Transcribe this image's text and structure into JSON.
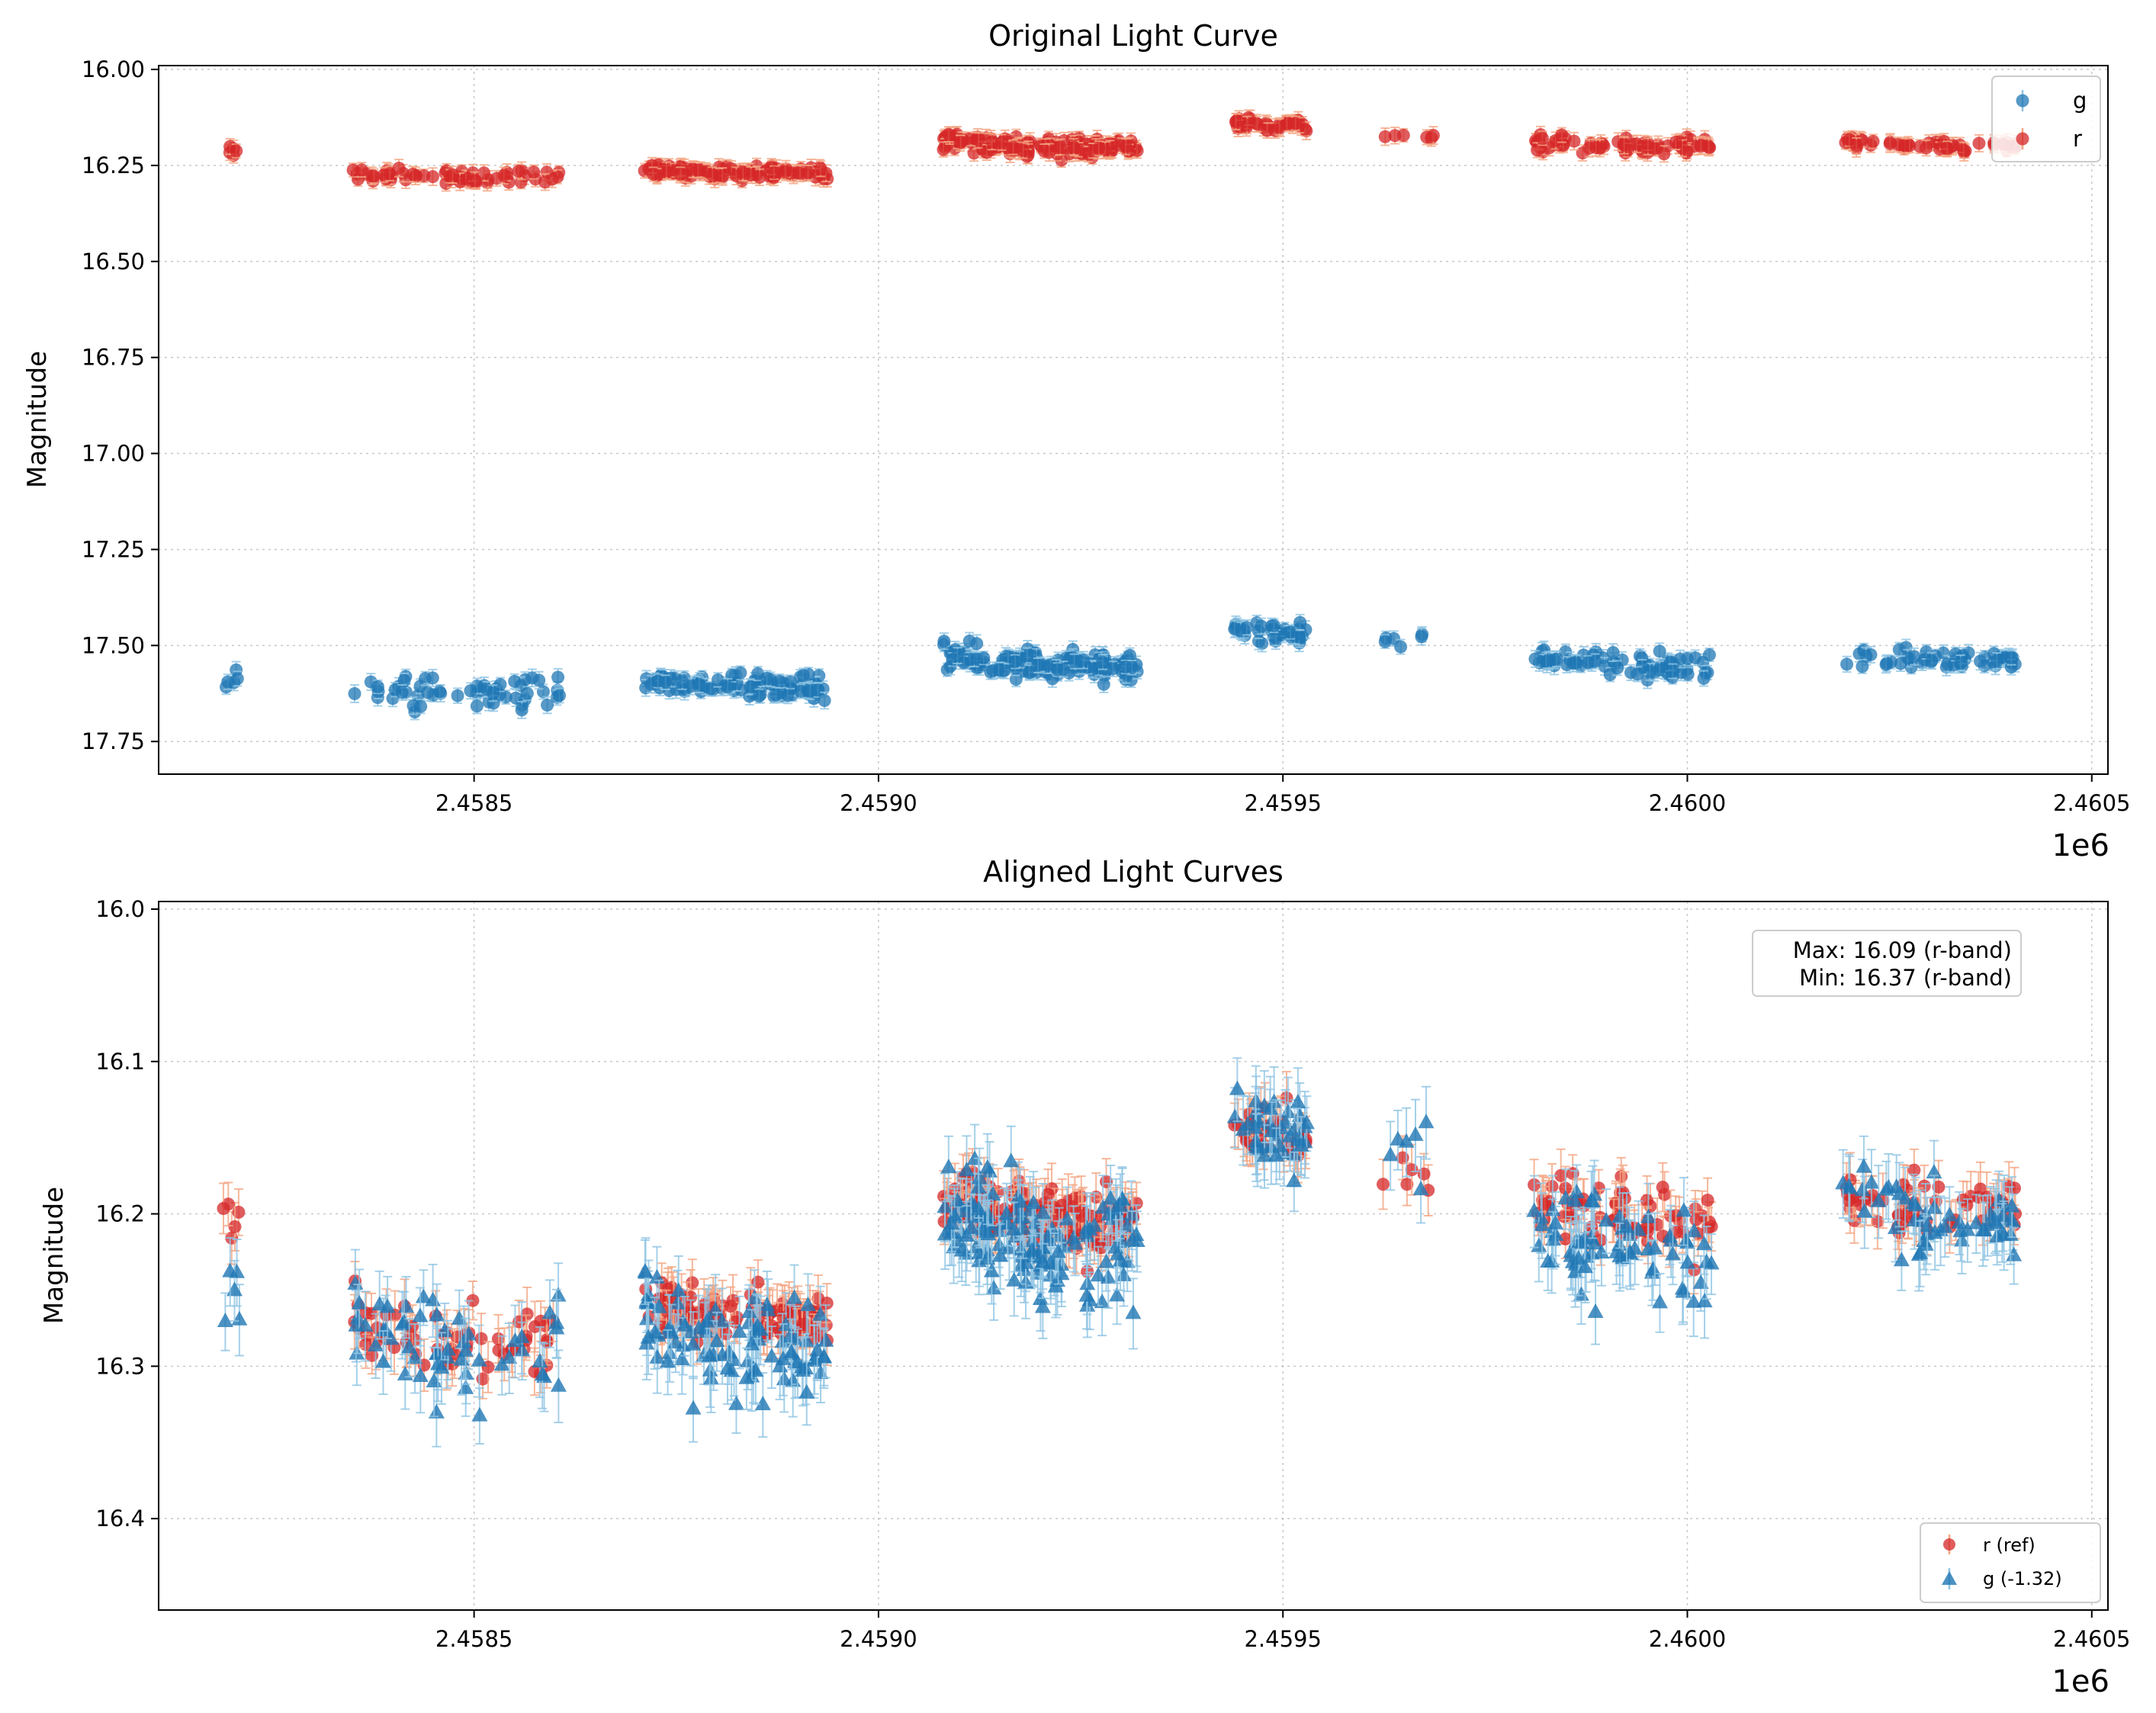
{
  "chart_data": [
    {
      "type": "scatter",
      "title": "Original Light Curve",
      "xlabel": "",
      "ylabel": "Magnitude",
      "x_offset_label": "1e6",
      "xlim": [
        2.45811,
        2.46052
      ],
      "ylim": [
        17.835,
        15.99
      ],
      "y_inverted": true,
      "x_ticks": [
        2.4585,
        2.459,
        2.4595,
        2.46,
        2.4605
      ],
      "x_tick_labels": [
        "2.4585",
        "2.4590",
        "2.4595",
        "2.4600",
        "2.4605"
      ],
      "y_ticks": [
        16.0,
        16.25,
        16.5,
        16.75,
        17.0,
        17.25,
        17.5,
        17.75
      ],
      "y_tick_labels": [
        "16.00",
        "16.25",
        "16.50",
        "16.75",
        "17.00",
        "17.25",
        "17.50",
        "17.75"
      ],
      "grid": true,
      "legend_position": "upper right",
      "legend": [
        {
          "label": "g",
          "color": "#1f77b4",
          "marker": "circle"
        },
        {
          "label": "r",
          "color": "#d62728",
          "marker": "circle"
        }
      ],
      "series": [
        {
          "name": "g",
          "color": "#1f77b4",
          "error_color": "#8fc4e3",
          "marker": "circle",
          "segments": [
            {
              "x0": 2.45819,
              "x1": 2.45821,
              "n": 5,
              "y_mean": 17.58,
              "y_spread": 0.05
            },
            {
              "x0": 2.45835,
              "x1": 2.45861,
              "n": 55,
              "y_mean": 17.6,
              "y_spread": 0.08
            },
            {
              "x0": 2.45871,
              "x1": 2.45894,
              "n": 95,
              "y_mean": 17.59,
              "y_spread": 0.06
            },
            {
              "x0": 2.45908,
              "x1": 2.45932,
              "n": 140,
              "y_mean": 17.53,
              "y_spread": 0.07
            },
            {
              "x0": 2.45944,
              "x1": 2.45953,
              "n": 40,
              "y_mean": 17.46,
              "y_spread": 0.05
            },
            {
              "x0": 2.45962,
              "x1": 2.45969,
              "n": 6,
              "y_mean": 17.48,
              "y_spread": 0.04
            },
            {
              "x0": 2.45981,
              "x1": 2.46003,
              "n": 70,
              "y_mean": 17.53,
              "y_spread": 0.06
            },
            {
              "x0": 2.46019,
              "x1": 2.46041,
              "n": 55,
              "y_mean": 17.52,
              "y_spread": 0.05
            }
          ]
        },
        {
          "name": "r",
          "color": "#d62728",
          "error_color": "#f4a582",
          "marker": "circle",
          "segments": [
            {
              "x0": 2.45819,
              "x1": 2.45821,
              "n": 5,
              "y_mean": 16.21,
              "y_spread": 0.03
            },
            {
              "x0": 2.45835,
              "x1": 2.45861,
              "n": 60,
              "y_mean": 16.27,
              "y_spread": 0.04
            },
            {
              "x0": 2.45871,
              "x1": 2.45894,
              "n": 100,
              "y_mean": 16.26,
              "y_spread": 0.03
            },
            {
              "x0": 2.45908,
              "x1": 2.45932,
              "n": 140,
              "y_mean": 16.19,
              "y_spread": 0.04
            },
            {
              "x0": 2.45944,
              "x1": 2.45953,
              "n": 40,
              "y_mean": 16.14,
              "y_spread": 0.03
            },
            {
              "x0": 2.45962,
              "x1": 2.45969,
              "n": 6,
              "y_mean": 16.17,
              "y_spread": 0.02
            },
            {
              "x0": 2.45981,
              "x1": 2.46003,
              "n": 70,
              "y_mean": 16.19,
              "y_spread": 0.04
            },
            {
              "x0": 2.46019,
              "x1": 2.46041,
              "n": 55,
              "y_mean": 16.19,
              "y_spread": 0.03
            }
          ]
        }
      ]
    },
    {
      "type": "scatter",
      "title": "Aligned Light Curves",
      "xlabel": "",
      "ylabel": "Magnitude",
      "x_offset_label": "1e6",
      "xlim": [
        2.45811,
        2.46052
      ],
      "ylim": [
        16.46,
        15.995
      ],
      "y_inverted": true,
      "x_ticks": [
        2.4585,
        2.459,
        2.4595,
        2.46,
        2.4605
      ],
      "x_tick_labels": [
        "2.4585",
        "2.4590",
        "2.4595",
        "2.4600",
        "2.4605"
      ],
      "y_ticks": [
        16.0,
        16.1,
        16.2,
        16.3,
        16.4
      ],
      "y_tick_labels": [
        "16.0",
        "16.1",
        "16.2",
        "16.3",
        "16.4"
      ],
      "grid": true,
      "legend_position": "lower right",
      "legend": [
        {
          "label": "r (ref)",
          "color": "#d62728",
          "marker": "circle"
        },
        {
          "label": "g (-1.32)",
          "color": "#1f77b4",
          "marker": "triangle"
        }
      ],
      "annotation_lines": [
        "Max: 16.09 (r-band)",
        "Min: 16.37 (r-band)"
      ],
      "annotation_position": "upper right",
      "series": [
        {
          "name": "r (ref)",
          "color": "#d62728",
          "error_color": "#f4a582",
          "marker": "circle",
          "segments": [
            {
              "x0": 2.45819,
              "x1": 2.45821,
              "n": 5,
              "y_mean": 16.21,
              "y_spread": 0.03
            },
            {
              "x0": 2.45835,
              "x1": 2.45861,
              "n": 60,
              "y_mean": 16.27,
              "y_spread": 0.04
            },
            {
              "x0": 2.45871,
              "x1": 2.45894,
              "n": 100,
              "y_mean": 16.26,
              "y_spread": 0.03
            },
            {
              "x0": 2.45908,
              "x1": 2.45932,
              "n": 140,
              "y_mean": 16.19,
              "y_spread": 0.04
            },
            {
              "x0": 2.45944,
              "x1": 2.45953,
              "n": 40,
              "y_mean": 16.14,
              "y_spread": 0.03
            },
            {
              "x0": 2.45962,
              "x1": 2.45969,
              "n": 6,
              "y_mean": 16.17,
              "y_spread": 0.02
            },
            {
              "x0": 2.45981,
              "x1": 2.46003,
              "n": 70,
              "y_mean": 16.19,
              "y_spread": 0.04
            },
            {
              "x0": 2.46019,
              "x1": 2.46041,
              "n": 55,
              "y_mean": 16.19,
              "y_spread": 0.03
            }
          ]
        },
        {
          "name": "g (-1.32)",
          "color": "#1f77b4",
          "error_color": "#8fc4e3",
          "marker": "triangle",
          "segments": [
            {
              "x0": 2.45819,
              "x1": 2.45821,
              "n": 5,
              "y_mean": 16.26,
              "y_spread": 0.05
            },
            {
              "x0": 2.45835,
              "x1": 2.45861,
              "n": 55,
              "y_mean": 16.27,
              "y_spread": 0.07
            },
            {
              "x0": 2.45871,
              "x1": 2.45894,
              "n": 95,
              "y_mean": 16.27,
              "y_spread": 0.06
            },
            {
              "x0": 2.45908,
              "x1": 2.45932,
              "n": 140,
              "y_mean": 16.2,
              "y_spread": 0.07
            },
            {
              "x0": 2.45944,
              "x1": 2.45953,
              "n": 40,
              "y_mean": 16.14,
              "y_spread": 0.05
            },
            {
              "x0": 2.45962,
              "x1": 2.45969,
              "n": 6,
              "y_mean": 16.15,
              "y_spread": 0.04
            },
            {
              "x0": 2.45981,
              "x1": 2.46003,
              "n": 70,
              "y_mean": 16.21,
              "y_spread": 0.06
            },
            {
              "x0": 2.46019,
              "x1": 2.46041,
              "n": 55,
              "y_mean": 16.19,
              "y_spread": 0.05
            }
          ]
        }
      ]
    }
  ]
}
